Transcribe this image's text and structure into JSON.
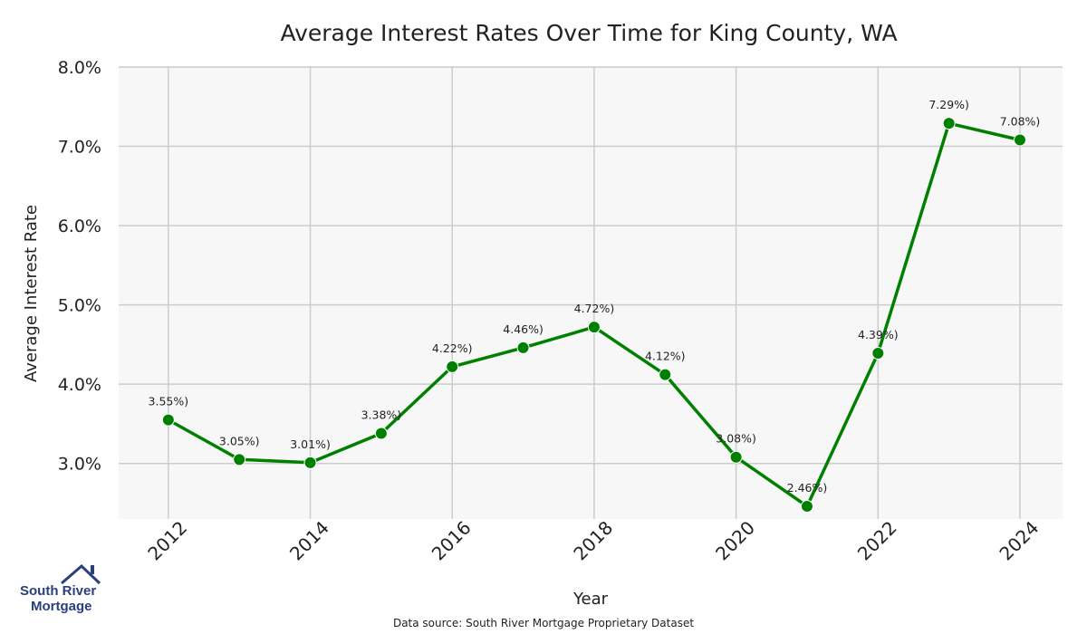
{
  "chart_data": {
    "type": "line",
    "title": "Average Interest Rates Over Time for King County, WA",
    "xlabel": "Year",
    "ylabel": "Average Interest Rate",
    "x": [
      2012,
      2013,
      2014,
      2015,
      2016,
      2017,
      2018,
      2019,
      2020,
      2021,
      2022,
      2023,
      2024
    ],
    "values": [
      3.55,
      3.05,
      3.01,
      3.38,
      4.22,
      4.46,
      4.72,
      4.12,
      3.08,
      2.46,
      4.39,
      7.29,
      7.08
    ],
    "point_labels": [
      "3.55%)",
      "3.05%)",
      "3.01%)",
      "3.38%)",
      "4.22%)",
      "4.46%)",
      "4.72%)",
      "4.12%)",
      "3.08%)",
      "2.46%)",
      "4.39%)",
      "7.29%)",
      "7.08%)"
    ],
    "xticks": [
      "2012",
      "2014",
      "2016",
      "2018",
      "2020",
      "2022",
      "2024"
    ],
    "xtick_values": [
      2012,
      2014,
      2016,
      2018,
      2020,
      2022,
      2024
    ],
    "yticks": [
      "3.0%",
      "4.0%",
      "5.0%",
      "6.0%",
      "7.0%",
      "8.0%"
    ],
    "ytick_values": [
      3,
      4,
      5,
      6,
      7,
      8
    ],
    "xlim": [
      2011.3,
      2024.6
    ],
    "ylim": [
      2.3,
      8.0
    ],
    "grid": true,
    "line_color": "#008000",
    "plot_background": "#f7f7f7",
    "grid_color": "#cccccc"
  },
  "footer": {
    "source": "Data source: South River Mortgage Proprietary Dataset"
  },
  "logo": {
    "line1": "South River",
    "line2": "Mortgage",
    "color": "#2a3f7d",
    "icon": "house-roof-icon"
  }
}
